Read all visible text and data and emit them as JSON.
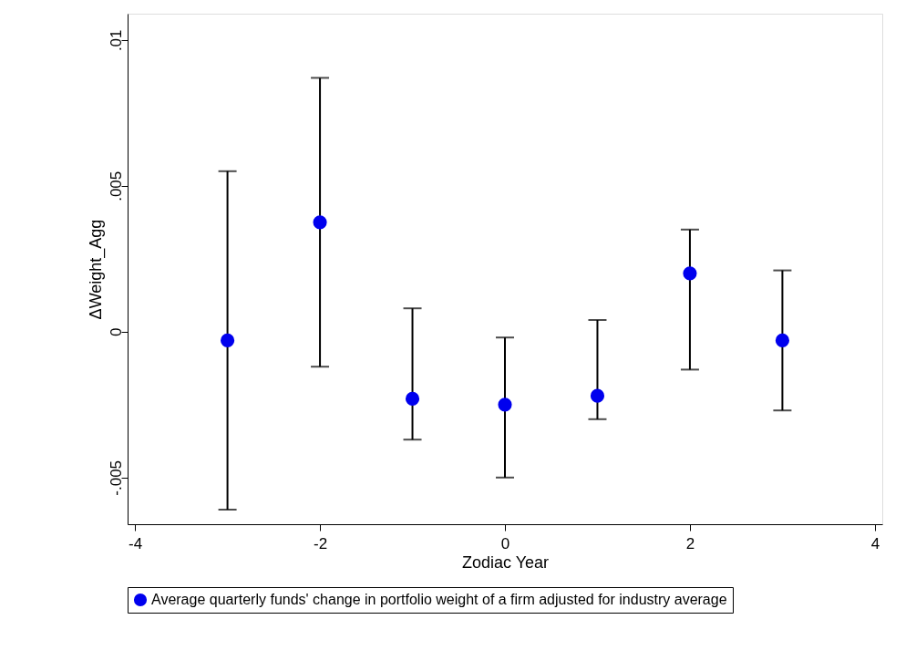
{
  "chart_data": {
    "type": "scatter",
    "xlabel": "Zodiac Year",
    "ylabel": "ΔWeight_Agg",
    "x": [
      -3,
      -2,
      -1,
      0,
      1,
      2,
      3
    ],
    "series": [
      {
        "name": "Average quarterly funds' change in portfolio weight of a firm adjusted for industry average",
        "color": "#0000ee",
        "values": [
          -0.0003,
          0.00375,
          -0.0023,
          -0.0025,
          -0.0022,
          0.002,
          -0.0003
        ],
        "errors": [
          [
            -0.0061,
            0.0055
          ],
          [
            -0.0012,
            0.0087
          ],
          [
            -0.0037,
            0.0008
          ],
          [
            -0.005,
            -0.0002
          ],
          [
            -0.003,
            0.0004
          ],
          [
            -0.0013,
            0.0035
          ],
          [
            -0.0027,
            0.0021
          ]
        ]
      }
    ],
    "xlim": [
      -4.08,
      4.08
    ],
    "xticks": [
      -4,
      -2,
      0,
      2,
      4
    ],
    "ylim": [
      -0.0066,
      0.0109
    ],
    "yticks": [
      {
        "value": -0.005,
        "label": "-.005"
      },
      {
        "value": 0,
        "label": "0"
      },
      {
        "value": 0.005,
        "label": ".005"
      },
      {
        "value": 0.01,
        "label": ".01"
      }
    ],
    "marker": "circle",
    "grid": false,
    "legend": "bottom"
  }
}
